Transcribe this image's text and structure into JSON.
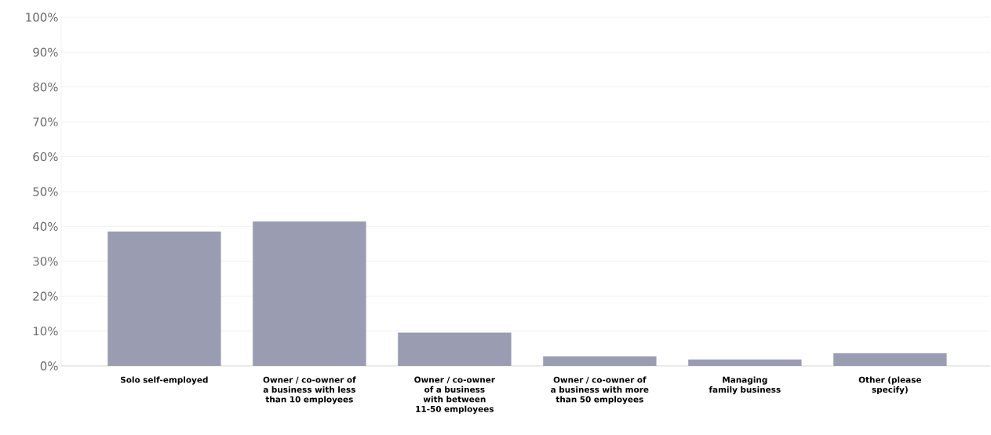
{
  "chart_data": {
    "type": "bar",
    "categories": [
      "Solo self-employed",
      "Owner / co-owner of a business with less than 10 employees",
      "Owner / co-owner of a business with between 11-50 employees",
      "Owner / co-owner of a business with more than 50 employees",
      "Managing family business",
      "Other (please specify)"
    ],
    "values": [
      38.5,
      41.4,
      9.5,
      2.7,
      1.8,
      3.6
    ],
    "color": "#9a9db2",
    "ylim": [
      0,
      100
    ],
    "yticks": [
      {
        "value": 0,
        "label": "0%"
      },
      {
        "value": 10,
        "label": "10%"
      },
      {
        "value": 20,
        "label": "20%"
      },
      {
        "value": 30,
        "label": "30%"
      },
      {
        "value": 40,
        "label": "40%"
      },
      {
        "value": 50,
        "label": "50%"
      },
      {
        "value": 60,
        "label": "60%"
      },
      {
        "value": 70,
        "label": "70%"
      },
      {
        "value": 80,
        "label": "80%"
      },
      {
        "value": 90,
        "label": "90%"
      },
      {
        "value": 100,
        "label": "100%"
      }
    ],
    "grid": "y"
  }
}
